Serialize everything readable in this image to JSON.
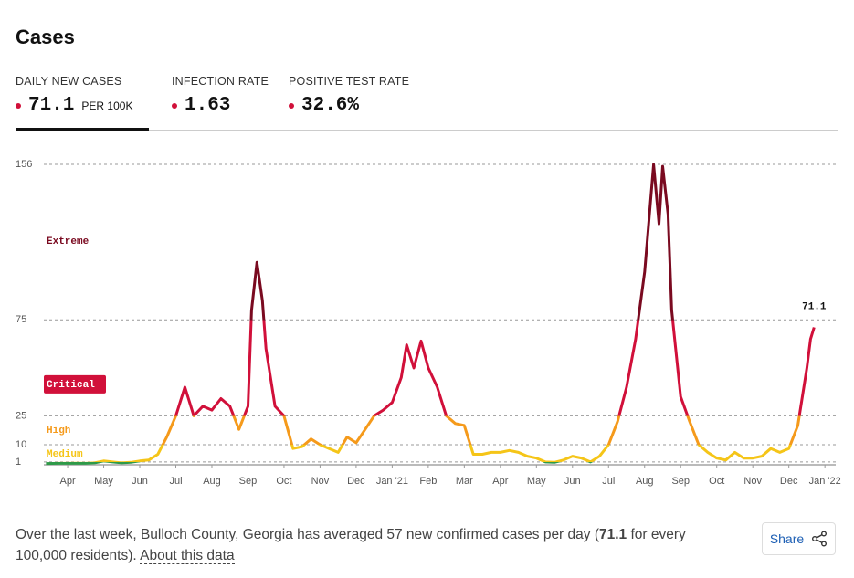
{
  "header": {
    "title": "Cases"
  },
  "tabs": [
    {
      "label": "DAILY NEW CASES",
      "value": "71.1",
      "unit": "PER 100K"
    },
    {
      "label": "INFECTION RATE",
      "value": "1.63"
    },
    {
      "label": "POSITIVE TEST RATE",
      "value": "32.6%"
    }
  ],
  "chart_data": {
    "type": "line",
    "x": [
      0.4,
      0.75,
      1,
      1.25,
      1.5,
      1.75,
      2,
      2.25,
      2.5,
      2.75,
      3,
      3.25,
      3.5,
      3.75,
      4,
      4.25,
      4.5,
      4.75,
      5,
      5.25,
      5.5,
      5.75,
      6,
      6.1,
      6.25,
      6.4,
      6.5,
      6.75,
      7,
      7.25,
      7.5,
      7.75,
      8,
      8.25,
      8.5,
      8.75,
      9,
      9.25,
      9.5,
      9.75,
      10,
      10.25,
      10.4,
      10.6,
      10.8,
      11,
      11.25,
      11.5,
      11.75,
      12,
      12.25,
      12.5,
      12.75,
      13,
      13.25,
      13.5,
      13.75,
      14,
      14.25,
      14.5,
      14.75,
      15,
      15.25,
      15.5,
      15.75,
      16,
      16.25,
      16.5,
      16.75,
      17,
      17.25,
      17.4,
      17.5,
      17.65,
      17.75,
      18,
      18.25,
      18.5,
      18.75,
      19,
      19.25,
      19.5,
      19.75,
      20,
      20.25,
      20.5,
      20.75,
      21,
      21.25,
      21.5,
      21.6,
      21.7
    ],
    "values": [
      0.2,
      0.3,
      0.3,
      0.4,
      0.3,
      0.5,
      1.5,
      1,
      0.5,
      0.8,
      1.5,
      2,
      5,
      14,
      25,
      40,
      25,
      30,
      28,
      34,
      30,
      18,
      30,
      80,
      105,
      85,
      60,
      30,
      25,
      8,
      9,
      13,
      10,
      8,
      6,
      14,
      11,
      18,
      25,
      28,
      32,
      45,
      62,
      50,
      64,
      50,
      40,
      25,
      21,
      20,
      5,
      5,
      6,
      6,
      7,
      6,
      4,
      3,
      1,
      0.8,
      2,
      4,
      3,
      1,
      4,
      10,
      22,
      40,
      65,
      100,
      156,
      125,
      155,
      130,
      80,
      35,
      22,
      10,
      6,
      3,
      2,
      6,
      3,
      3,
      4,
      8,
      6,
      8,
      20,
      50,
      65,
      71.1
    ],
    "value_labels": [
      null,
      null,
      null,
      null,
      null,
      null,
      null,
      null,
      null,
      null,
      null,
      null,
      null,
      null,
      null,
      null,
      null,
      null,
      null,
      null,
      null,
      null,
      null,
      null,
      null,
      null,
      null,
      null,
      null,
      null,
      null,
      null,
      null,
      null,
      null,
      null,
      null,
      null,
      null,
      null,
      null,
      null,
      null,
      null,
      null,
      null,
      null,
      null,
      null,
      null,
      null,
      null,
      null,
      null,
      null,
      null,
      null,
      null,
      null,
      null,
      null,
      null,
      null,
      null,
      null,
      null,
      null,
      null,
      null,
      null,
      null,
      null,
      null,
      null,
      null,
      null,
      null,
      null,
      null,
      null,
      null,
      null,
      null,
      null,
      null,
      null,
      null,
      null,
      null,
      null,
      null,
      "71.1"
    ],
    "xlim": [
      0.34,
      22.3
    ],
    "xticks": [
      {
        "value": 1,
        "label": "Apr"
      },
      {
        "value": 2,
        "label": "May"
      },
      {
        "value": 3,
        "label": "Jun"
      },
      {
        "value": 4,
        "label": "Jul"
      },
      {
        "value": 5,
        "label": "Aug"
      },
      {
        "value": 6,
        "label": "Sep"
      },
      {
        "value": 7,
        "label": "Oct"
      },
      {
        "value": 8,
        "label": "Nov"
      },
      {
        "value": 9,
        "label": "Dec"
      },
      {
        "value": 10,
        "label": "Jan '21"
      },
      {
        "value": 11,
        "label": "Feb"
      },
      {
        "value": 12,
        "label": "Mar"
      },
      {
        "value": 13,
        "label": "Apr"
      },
      {
        "value": 14,
        "label": "May"
      },
      {
        "value": 15,
        "label": "Jun"
      },
      {
        "value": 16,
        "label": "Jul"
      },
      {
        "value": 17,
        "label": "Aug"
      },
      {
        "value": 18,
        "label": "Sep"
      },
      {
        "value": 19,
        "label": "Oct"
      },
      {
        "value": 20,
        "label": "Nov"
      },
      {
        "value": 21,
        "label": "Dec"
      },
      {
        "value": 22,
        "label": "Jan '22"
      }
    ],
    "ylim": [
      0,
      156
    ],
    "yticks": [
      1,
      10,
      25,
      75,
      156
    ],
    "grid": true,
    "base_color": "#2e9a48",
    "levels": [
      {
        "label": "Medium",
        "threshold": 1,
        "color": "#f5c518"
      },
      {
        "label": "High",
        "threshold": 10,
        "color": "#f59a1b"
      },
      {
        "label": "Critical",
        "threshold": 25,
        "color": "#d1103a"
      },
      {
        "label": "Extreme",
        "threshold": 75,
        "color": "#7a0a20"
      }
    ],
    "current_level": "Critical"
  },
  "summary": {
    "before": "Over the last week, Bulloch County, Georgia has averaged 57 new confirmed cases per day (",
    "bold": "71.1",
    "after": " for every 100,000 residents). ",
    "link": "About this data"
  },
  "share": "Share"
}
